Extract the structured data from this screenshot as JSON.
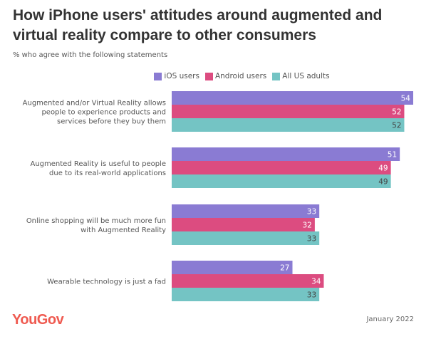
{
  "chart_data": {
    "type": "bar",
    "orientation": "horizontal",
    "title": "How iPhone users' attitudes around augmented and virtual reality compare to other consumers",
    "subtitle": "% who agree with the following statements",
    "categories": [
      [
        "Augmented and/or Virtual Reality allows",
        "people to experience products and",
        "services before they buy them"
      ],
      [
        "Augmented Reality is useful to people",
        "due to its real-world applications"
      ],
      [
        "Online shopping will be much more fun",
        "with Augmented Reality"
      ],
      [
        "Wearable technology is just a fad"
      ]
    ],
    "series": [
      {
        "name": "iOS users",
        "color": "#8a7bd3",
        "label_color": "#ffffff",
        "values": [
          54,
          51,
          33,
          27
        ]
      },
      {
        "name": "Android users",
        "color": "#dc4c80",
        "label_color": "#ffffff",
        "values": [
          52,
          49,
          32,
          34
        ]
      },
      {
        "name": "All US adults",
        "color": "#74c4c4",
        "label_color": "#444444",
        "values": [
          52,
          49,
          33,
          33
        ]
      }
    ],
    "xlim": [
      0,
      54
    ],
    "grid": false,
    "legend": "top"
  },
  "footer": {
    "logo": "YouGov",
    "date": "January 2022"
  }
}
